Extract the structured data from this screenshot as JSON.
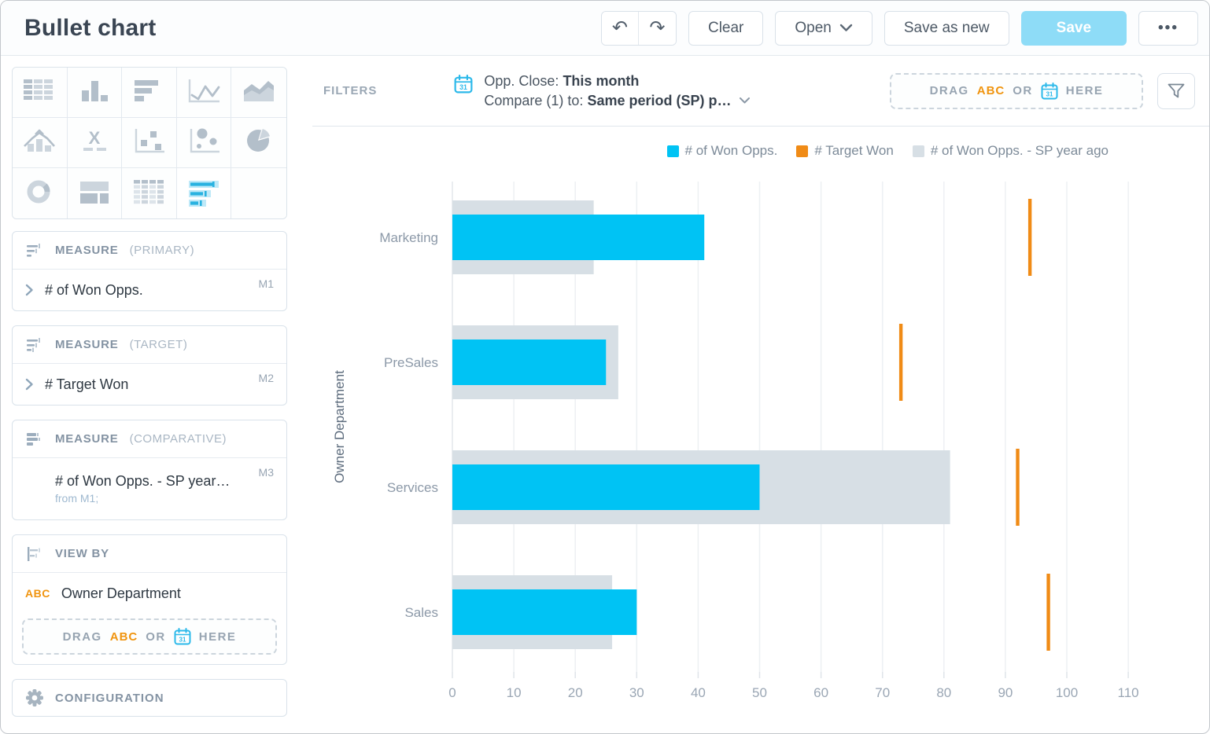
{
  "app": {
    "title": "Bullet chart"
  },
  "toolbar": {
    "undo": "undo",
    "redo": "redo",
    "clear": "Clear",
    "open": "Open",
    "save_as_new": "Save as new",
    "save": "Save",
    "more": "...",
    "save_color": "#8edcf7"
  },
  "chart_types": [
    {
      "name": "table"
    },
    {
      "name": "column-chart"
    },
    {
      "name": "bar-chart"
    },
    {
      "name": "line-chart"
    },
    {
      "name": "area-chart"
    },
    {
      "name": "combo-chart"
    },
    {
      "name": "x-axis"
    },
    {
      "name": "scatter-plot"
    },
    {
      "name": "bubble-chart"
    },
    {
      "name": "pie-chart"
    },
    {
      "name": "donut-chart"
    },
    {
      "name": "layout-chart"
    },
    {
      "name": "pivot-table"
    },
    {
      "name": "bullet-chart",
      "selected": true
    },
    {
      "name": "empty"
    }
  ],
  "panels": {
    "primary": {
      "header": "MEASURE",
      "qualifier": "(PRIMARY)",
      "value": "# of Won Opps.",
      "badge": "M1"
    },
    "target": {
      "header": "MEASURE",
      "qualifier": "(TARGET)",
      "value": "# Target Won",
      "badge": "M2"
    },
    "comparative": {
      "header": "MEASURE",
      "qualifier": "(COMPARATIVE)",
      "value": "# of Won Opps. - SP year…",
      "badge": "M3",
      "sub": "from M1;"
    },
    "view_by": {
      "header": "VIEW BY",
      "field_type": "ABC",
      "value": "Owner Department",
      "drop_zone": {
        "drag": "DRAG",
        "abc": "ABC",
        "or": "OR",
        "here": "HERE"
      }
    },
    "configuration": {
      "label": "CONFIGURATION"
    }
  },
  "filters": {
    "label": "FILTERS",
    "line1_prefix": "Opp. Close: ",
    "line1_value": "This month",
    "line2_prefix": "Compare (1) to: ",
    "line2_value": "Same period (SP) p…",
    "drop_zone": {
      "drag": "DRAG",
      "abc": "ABC",
      "or": "OR",
      "here": "HERE"
    }
  },
  "chart_data": {
    "type": "bar",
    "subtype": "bullet",
    "orientation": "horizontal",
    "categories": [
      "Marketing",
      "PreSales",
      "Services",
      "Sales"
    ],
    "series": [
      {
        "name": "# of Won Opps.",
        "role": "primary",
        "color": "#00c3f4",
        "values": [
          41,
          25,
          50,
          30
        ]
      },
      {
        "name": "# Target Won",
        "role": "target",
        "color": "#f08b16",
        "values": [
          94,
          73,
          92,
          97
        ]
      },
      {
        "name": "# of Won Opps. - SP year ago",
        "role": "comparative",
        "color": "#d7dfe5",
        "values": [
          23,
          27,
          81,
          26
        ]
      }
    ],
    "title": "",
    "xlabel": "",
    "ylabel": "Owner Department",
    "xlim": [
      0,
      113
    ],
    "x_ticks": [
      0,
      10,
      20,
      30,
      40,
      50,
      60,
      70,
      80,
      90,
      100,
      110
    ],
    "grid": true,
    "legend_position": "top-right"
  }
}
